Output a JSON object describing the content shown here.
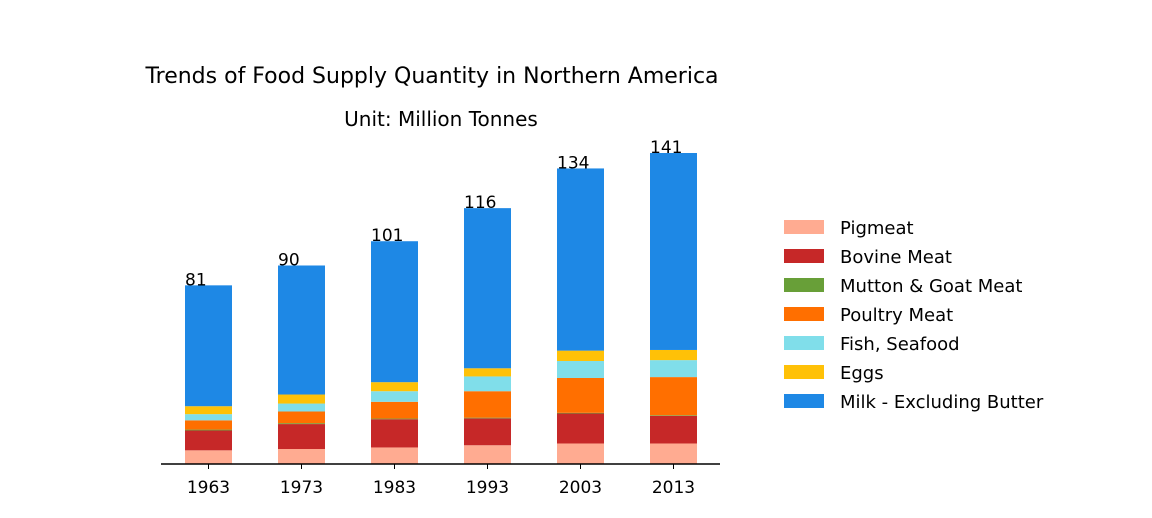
{
  "chart_data": {
    "type": "bar",
    "stacked": true,
    "title": "Trends of Food Supply Quantity in Northern America",
    "subtitle": "Unit: Million Tonnes",
    "xlabel": "",
    "ylabel": "",
    "categories": [
      "1963",
      "1973",
      "1983",
      "1993",
      "2003",
      "2013"
    ],
    "totals": [
      "81",
      "90",
      "101",
      "116",
      "134",
      "141"
    ],
    "ylim": [
      0,
      141
    ],
    "grid": false,
    "legend_position": "right",
    "series": [
      {
        "name": "Pigmeat",
        "color": "#FFAB91",
        "values": [
          6.2,
          6.8,
          7.5,
          8.5,
          9.3,
          9.3
        ]
      },
      {
        "name": "Bovine Meat",
        "color": "#C62828",
        "values": [
          9.0,
          11.3,
          12.8,
          12.2,
          13.6,
          12.5
        ]
      },
      {
        "name": "Mutton & Goat Meat",
        "color": "#689F38",
        "values": [
          0.4,
          0.4,
          0.3,
          0.3,
          0.3,
          0.3
        ]
      },
      {
        "name": "Poultry Meat",
        "color": "#FF6F00",
        "values": [
          4.2,
          5.3,
          7.6,
          12.0,
          15.8,
          17.3
        ]
      },
      {
        "name": "Fish, Seafood",
        "color": "#80DEEA",
        "values": [
          2.8,
          3.6,
          4.8,
          6.7,
          7.7,
          7.7
        ]
      },
      {
        "name": "Eggs",
        "color": "#FFC107",
        "values": [
          3.6,
          4.1,
          4.1,
          3.7,
          4.7,
          4.6
        ]
      },
      {
        "name": "Milk - Excluding Butter",
        "color": "#1E88E5",
        "values": [
          54.8,
          58.5,
          63.9,
          72.6,
          82.6,
          89.3
        ]
      }
    ]
  }
}
